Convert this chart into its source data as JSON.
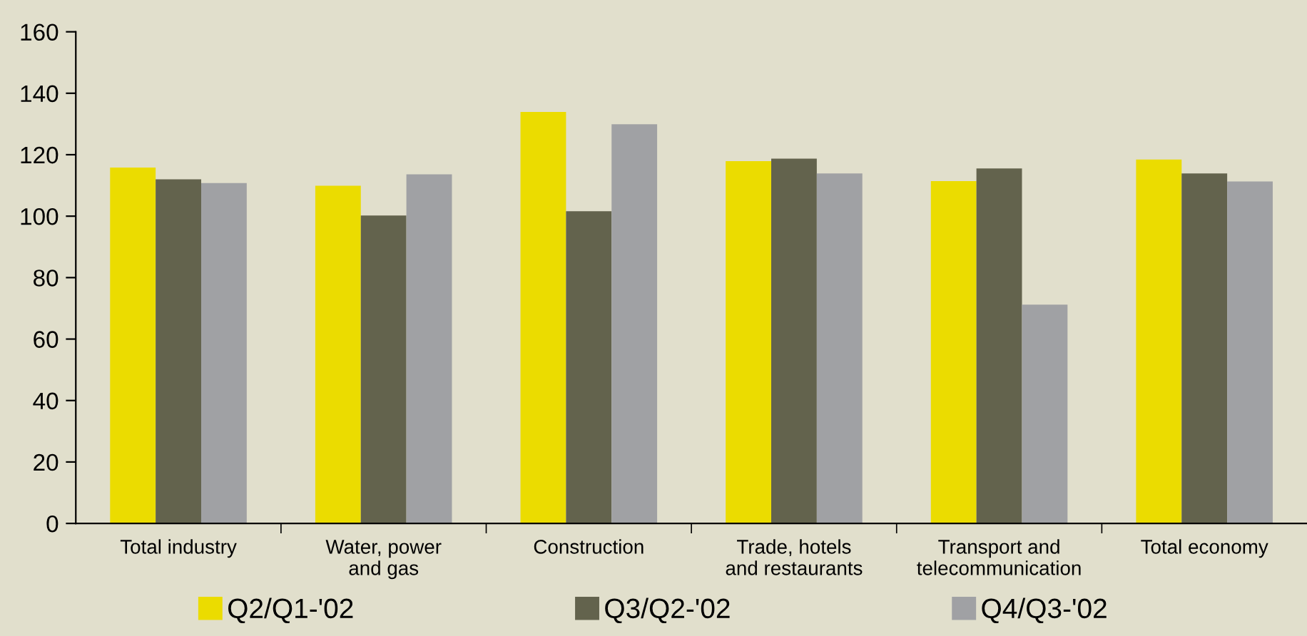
{
  "chart_data": {
    "type": "bar",
    "categories": [
      "Total industry",
      "Water, power\nand gas",
      "Construction",
      "Trade, hotels\nand restaurants",
      "Transport and\ntelecommunication",
      "Total economy"
    ],
    "series": [
      {
        "name": "Q2/Q1-'02",
        "color": "#ebdc00",
        "values": [
          115.8,
          109.9,
          133.9,
          117.9,
          111.4,
          118.4
        ]
      },
      {
        "name": "Q3/Q2-'02",
        "color": "#63634d",
        "values": [
          112.0,
          100.2,
          101.6,
          118.7,
          115.5,
          113.9
        ]
      },
      {
        "name": "Q4/Q3-'02",
        "color": "#a0a1a4",
        "values": [
          110.8,
          113.6,
          129.9,
          113.9,
          71.2,
          111.3
        ]
      }
    ],
    "ylim": [
      0,
      160
    ],
    "yticks": [
      0,
      20,
      40,
      60,
      80,
      100,
      120,
      140,
      160
    ],
    "grid": false,
    "legend": "bottom"
  }
}
